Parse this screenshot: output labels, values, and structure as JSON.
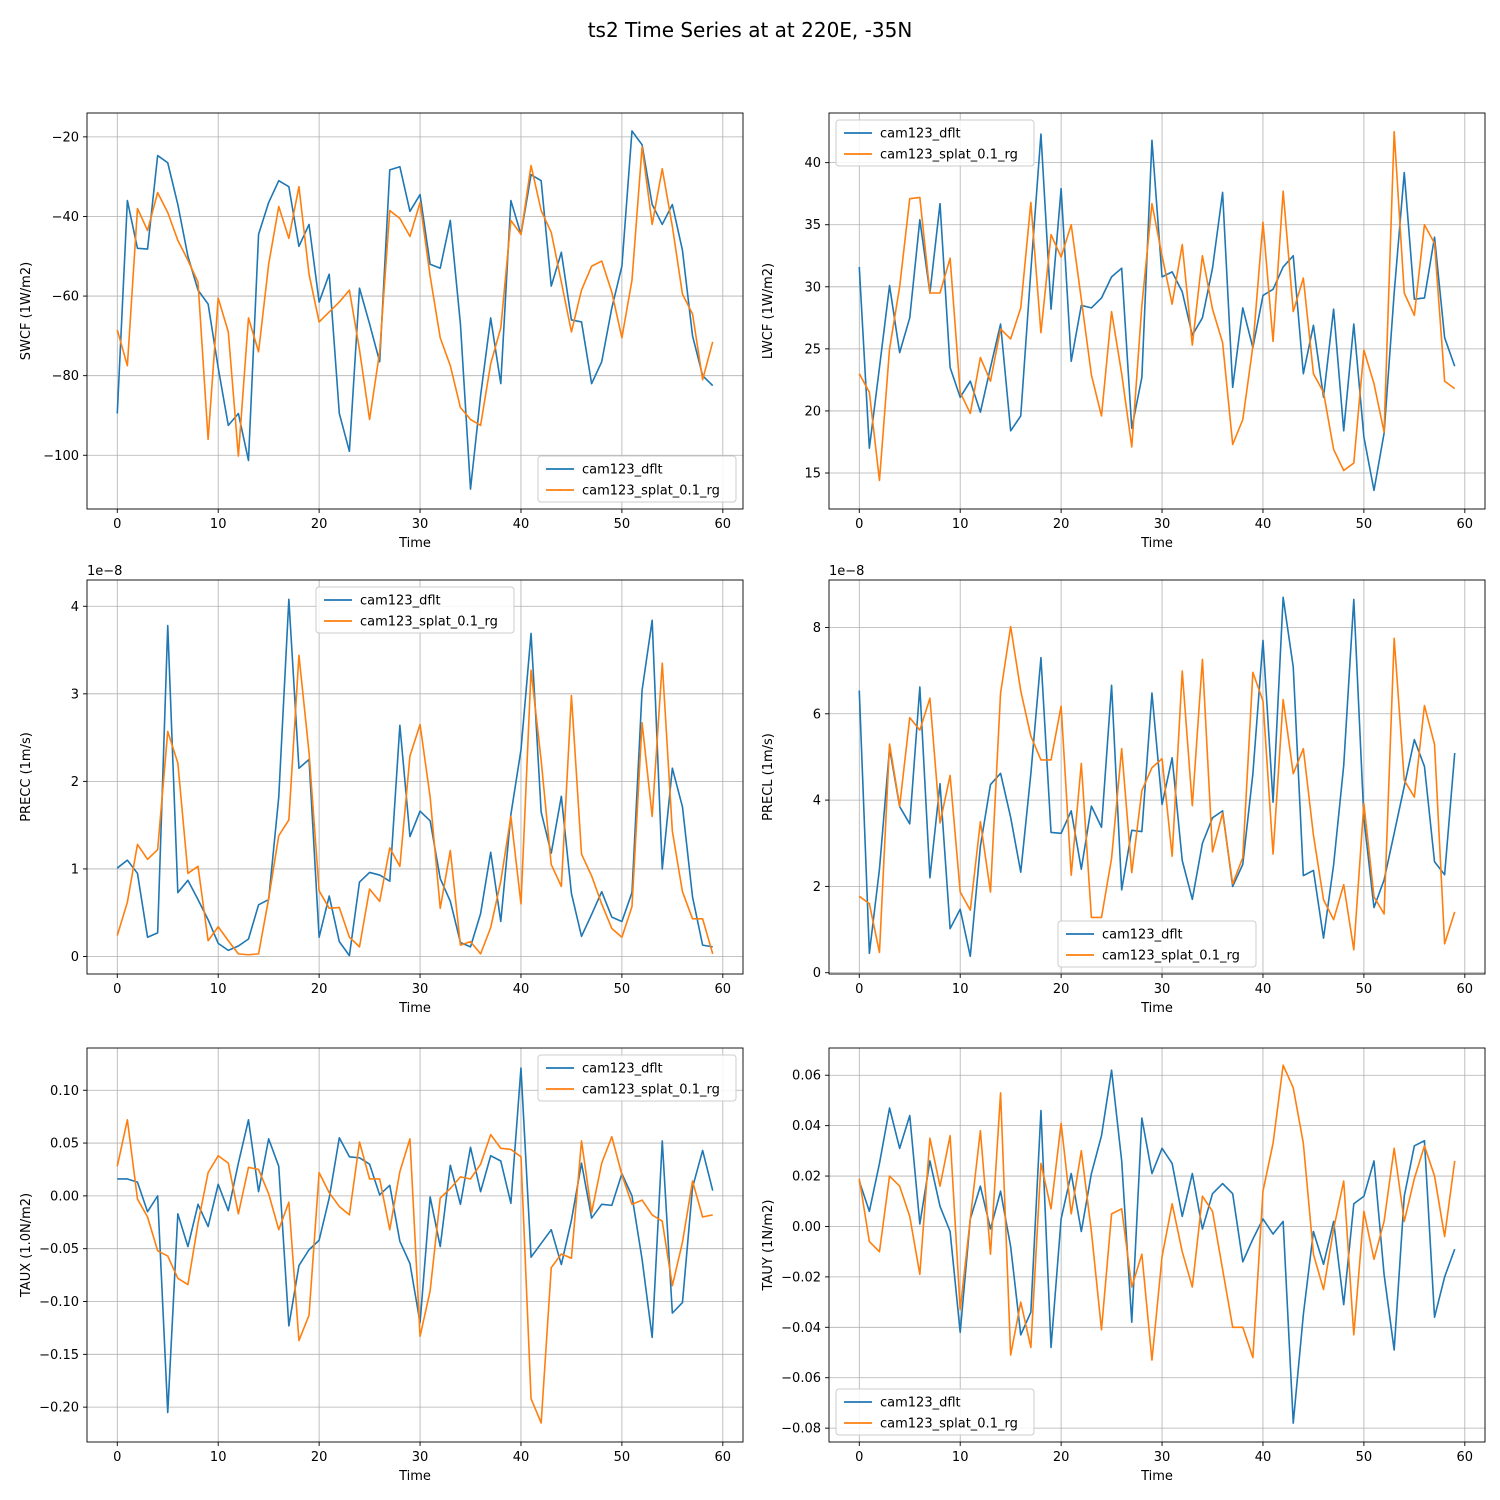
{
  "figure": {
    "title": "ts2 Time Series at at 220E, -35N"
  },
  "colors": {
    "cam123_dflt": "#1f77b4",
    "cam123_splat_0.1_rg": "#ff7f0e",
    "grid": "#b0b0b0"
  },
  "chart_data": [
    {
      "type": "line",
      "grid": true,
      "legend_position": "lower-right",
      "xlabel": "Time",
      "ylabel": "SWCF (1W/m2)",
      "scale_label": "",
      "xlim": [
        -3,
        62
      ],
      "ylim": [
        -113.5,
        -14
      ],
      "xticks": [
        0,
        10,
        20,
        30,
        40,
        50,
        60
      ],
      "xtick_labels": [
        "0",
        "10",
        "20",
        "30",
        "40",
        "50",
        "60"
      ],
      "yticks": [
        -100,
        -80,
        -60,
        -40,
        -20
      ],
      "ytick_labels": [
        "−100",
        "−80",
        "−60",
        "−40",
        "−20"
      ],
      "series": [
        {
          "name": "cam123_dflt",
          "x_start": 0,
          "values": [
            -89.5,
            -36,
            -48,
            -48.2,
            -24.7,
            -26.5,
            -37,
            -50,
            -58.5,
            -62,
            -78,
            -92.5,
            -89.5,
            -101.3,
            -44.5,
            -36.5,
            -31,
            -32.5,
            -47.5,
            -42,
            -61.5,
            -54.5,
            -89.5,
            -99,
            -58,
            -67,
            -76.5,
            -28.3,
            -27.5,
            -38.7,
            -34.5,
            -52,
            -53,
            -41,
            -67,
            -108.5,
            -85,
            -65.5,
            -82,
            -36,
            -44.5,
            -29.5,
            -31,
            -57.5,
            -49,
            -66,
            -66.5,
            -82,
            -76.5,
            -63,
            -52.5,
            -18.5,
            -22,
            -37,
            -42,
            -37,
            -48.5,
            -70,
            -80,
            -82.5
          ]
        },
        {
          "name": "cam123_splat_0.1_rg",
          "x_start": 0,
          "values": [
            -68.5,
            -77.5,
            -38,
            -43.5,
            -34,
            -39,
            -46,
            -51,
            -56.5,
            -96,
            -60.5,
            -69,
            -100.2,
            -65.5,
            -74,
            -52,
            -37.5,
            -45.5,
            -32.5,
            -54.5,
            -66.5,
            -64,
            -61.5,
            -58.5,
            -73.5,
            -91,
            -74,
            -38.5,
            -40.5,
            -45,
            -36.5,
            -55,
            -70.5,
            -77.5,
            -88,
            -91,
            -92.5,
            -77,
            -68,
            -41,
            -44.5,
            -27.2,
            -38.5,
            -44,
            -56.5,
            -69,
            -58.5,
            -52.5,
            -51.2,
            -59,
            -70.5,
            -56,
            -22.5,
            -42,
            -28,
            -42.5,
            -59.5,
            -64.5,
            -81,
            -71.5
          ]
        }
      ]
    },
    {
      "type": "line",
      "grid": true,
      "legend_position": "upper-left",
      "xlabel": "Time",
      "ylabel": "LWCF (1W/m2)",
      "scale_label": "",
      "xlim": [
        -3,
        62
      ],
      "ylim": [
        12.1,
        44.0
      ],
      "xticks": [
        0,
        10,
        20,
        30,
        40,
        50,
        60
      ],
      "xtick_labels": [
        "0",
        "10",
        "20",
        "30",
        "40",
        "50",
        "60"
      ],
      "yticks": [
        15,
        20,
        25,
        30,
        35,
        40
      ],
      "ytick_labels": [
        "15",
        "20",
        "25",
        "30",
        "35",
        "40"
      ],
      "series": [
        {
          "name": "cam123_dflt",
          "x_start": 0,
          "values": [
            31.6,
            17,
            23.5,
            30.1,
            24.7,
            27.5,
            35.4,
            29.5,
            36.7,
            23.5,
            21.1,
            22.4,
            19.9,
            23.5,
            27,
            18.4,
            19.6,
            31.3,
            42.3,
            28.2,
            37.9,
            24,
            28.5,
            28.3,
            29.1,
            30.8,
            31.5,
            18.6,
            22.7,
            41.8,
            30.8,
            31.2,
            29.6,
            26.1,
            27.5,
            31.5,
            37.6,
            21.9,
            28.3,
            25.1,
            29.3,
            29.8,
            31.6,
            32.5,
            23,
            26.9,
            21.1,
            28.2,
            18.4,
            27,
            17.9,
            13.6,
            18.2,
            29.5,
            39.2,
            29,
            29.1,
            34,
            25.9,
            23.6
          ]
        },
        {
          "name": "cam123_splat_0.1_rg",
          "x_start": 0,
          "values": [
            23,
            21.5,
            14.4,
            25,
            30,
            37.1,
            37.2,
            29.5,
            29.5,
            32.3,
            21.5,
            19.8,
            24.3,
            22.4,
            26.6,
            25.8,
            28.3,
            36.8,
            26.3,
            34.2,
            32.4,
            35,
            29,
            22.9,
            19.6,
            28,
            23,
            17.1,
            28.5,
            36.7,
            32.5,
            28.6,
            33.4,
            25.3,
            32.5,
            28.2,
            25.5,
            17.3,
            19.3,
            25.2,
            35.2,
            25.6,
            37.7,
            28,
            30.7,
            23,
            21.5,
            16.9,
            15.2,
            15.8,
            24.9,
            22.2,
            18.3,
            42.5,
            29.5,
            27.7,
            35,
            33.5,
            22.4,
            21.8
          ]
        }
      ]
    },
    {
      "type": "line",
      "grid": true,
      "legend_position": "upper-center",
      "xlabel": "Time",
      "ylabel": "PRECC (1m/s)",
      "scale_label": "1e−8",
      "xlim": [
        -3,
        62
      ],
      "ylim": [
        -0.2,
        4.3
      ],
      "xticks": [
        0,
        10,
        20,
        30,
        40,
        50,
        60
      ],
      "xtick_labels": [
        "0",
        "10",
        "20",
        "30",
        "40",
        "50",
        "60"
      ],
      "yticks": [
        0,
        1,
        2,
        3,
        4
      ],
      "ytick_labels": [
        "0",
        "1",
        "2",
        "3",
        "4"
      ],
      "series": [
        {
          "name": "cam123_dflt",
          "x_start": 0,
          "values": [
            1.01,
            1.1,
            0.95,
            0.22,
            0.27,
            3.78,
            0.73,
            0.87,
            0.65,
            0.42,
            0.15,
            0.07,
            0.12,
            0.2,
            0.59,
            0.65,
            1.82,
            4.08,
            2.15,
            2.25,
            0.22,
            0.69,
            0.17,
            0.01,
            0.85,
            0.96,
            0.93,
            0.86,
            2.64,
            1.37,
            1.66,
            1.55,
            0.89,
            0.63,
            0.16,
            0.11,
            0.49,
            1.19,
            0.4,
            1.62,
            2.36,
            3.69,
            1.65,
            1.18,
            1.83,
            0.72,
            0.23,
            0.48,
            0.74,
            0.45,
            0.4,
            0.73,
            3.04,
            3.84,
            1,
            2.15,
            1.71,
            0.68,
            0.13,
            0.11
          ]
        },
        {
          "name": "cam123_splat_0.1_rg",
          "x_start": 0,
          "values": [
            0.24,
            0.62,
            1.28,
            1.11,
            1.22,
            2.57,
            2.21,
            0.95,
            1.03,
            0.18,
            0.34,
            0.18,
            0.03,
            0.02,
            0.03,
            0.66,
            1.38,
            1.56,
            3.44,
            2.33,
            0.75,
            0.55,
            0.56,
            0.22,
            0.11,
            0.77,
            0.63,
            1.24,
            1.03,
            2.29,
            2.65,
            1.82,
            0.55,
            1.21,
            0.13,
            0.17,
            0.03,
            0.33,
            0.86,
            1.6,
            0.6,
            3.27,
            2.24,
            1.05,
            0.8,
            2.98,
            1.17,
            0.92,
            0.6,
            0.32,
            0.22,
            0.57,
            2.67,
            1.6,
            3.35,
            1.43,
            0.74,
            0.43,
            0.43,
            0.03
          ]
        }
      ]
    },
    {
      "type": "line",
      "grid": true,
      "legend_position": "lower-center",
      "xlabel": "Time",
      "ylabel": "PRECL (1m/s)",
      "scale_label": "1e−8",
      "xlim": [
        -3,
        62
      ],
      "ylim": [
        -0.03,
        9.1
      ],
      "xticks": [
        0,
        10,
        20,
        30,
        40,
        50,
        60
      ],
      "xtick_labels": [
        "0",
        "10",
        "20",
        "30",
        "40",
        "50",
        "60"
      ],
      "yticks": [
        0,
        2,
        4,
        6,
        8
      ],
      "ytick_labels": [
        "0",
        "2",
        "4",
        "6",
        "8"
      ],
      "series": [
        {
          "name": "cam123_dflt",
          "x_start": 0,
          "values": [
            6.54,
            0.45,
            2.4,
            5.2,
            3.85,
            3.45,
            6.62,
            2.2,
            4.38,
            1.02,
            1.47,
            0.38,
            2.93,
            4.36,
            4.62,
            3.6,
            2.33,
            4.61,
            7.3,
            3.25,
            3.23,
            3.75,
            2.4,
            3.86,
            3.37,
            6.66,
            1.92,
            3.3,
            3.27,
            6.48,
            3.9,
            4.98,
            2.6,
            1.7,
            3,
            3.59,
            3.75,
            2,
            2.51,
            4.61,
            7.7,
            3.95,
            8.7,
            7.08,
            2.25,
            2.37,
            0.8,
            2.5,
            4.8,
            8.65,
            3.57,
            1.51,
            2.15,
            3.23,
            4.32,
            5.4,
            4.78,
            2.57,
            2.27,
            5.09
          ]
        },
        {
          "name": "cam123_splat_0.1_rg",
          "x_start": 0,
          "values": [
            1.77,
            1.6,
            0.47,
            5.3,
            3.86,
            5.91,
            5.62,
            6.36,
            3.47,
            4.57,
            1.87,
            1.45,
            3.5,
            1.87,
            6.48,
            8.02,
            6.53,
            5.48,
            4.93,
            4.93,
            6.18,
            2.26,
            4.85,
            1.28,
            1.28,
            2.65,
            5.19,
            2.32,
            4.22,
            4.75,
            4.96,
            2.7,
            6.99,
            3.87,
            7.26,
            2.8,
            3.7,
            2.06,
            2.67,
            6.96,
            6.3,
            2.75,
            6.33,
            4.61,
            5.19,
            3.19,
            1.69,
            1.23,
            2.04,
            0.53,
            3.92,
            1.76,
            1.36,
            7.75,
            4.46,
            4.07,
            6.19,
            5.29,
            0.67,
            1.41
          ]
        }
      ]
    },
    {
      "type": "line",
      "grid": true,
      "legend_position": "upper-right",
      "xlabel": "Time",
      "ylabel": "TAUX (1.0N/m2)",
      "scale_label": "",
      "xlim": [
        -3,
        62
      ],
      "ylim": [
        -0.233,
        0.14
      ],
      "xticks": [
        0,
        10,
        20,
        30,
        40,
        50,
        60
      ],
      "xtick_labels": [
        "0",
        "10",
        "20",
        "30",
        "40",
        "50",
        "60"
      ],
      "yticks": [
        -0.2,
        -0.15,
        -0.1,
        -0.05,
        0.0,
        0.05,
        0.1
      ],
      "ytick_labels": [
        "−0.20",
        "−0.15",
        "−0.10",
        "−0.05",
        "0.00",
        "0.05",
        "0.10"
      ],
      "series": [
        {
          "name": "cam123_dflt",
          "x_start": 0,
          "values": [
            0.016,
            0.016,
            0.013,
            -0.015,
            0,
            -0.205,
            -0.017,
            -0.048,
            -0.008,
            -0.029,
            0.011,
            -0.014,
            0.031,
            0.072,
            0.004,
            0.054,
            0.028,
            -0.123,
            -0.066,
            -0.051,
            -0.042,
            -0.002,
            0.055,
            0.037,
            0.036,
            0.03,
            0.001,
            0.01,
            -0.043,
            -0.064,
            -0.12,
            -0.001,
            -0.048,
            0.029,
            -0.008,
            0.046,
            0.004,
            0.038,
            0.033,
            -0.007,
            0.121,
            -0.058,
            -0.045,
            -0.032,
            -0.065,
            -0.023,
            0.031,
            -0.021,
            -0.008,
            -0.009,
            0.021,
            0,
            -0.06,
            -0.134,
            0.052,
            -0.111,
            -0.101,
            0.008,
            0.043,
            0.005
          ]
        },
        {
          "name": "cam123_splat_0.1_rg",
          "x_start": 0,
          "values": [
            0.028,
            0.072,
            -0.003,
            -0.02,
            -0.052,
            -0.057,
            -0.078,
            -0.084,
            -0.026,
            0.022,
            0.038,
            0.031,
            -0.017,
            0.027,
            0.025,
            0.002,
            -0.032,
            -0.006,
            -0.137,
            -0.113,
            0.022,
            0.003,
            -0.01,
            -0.018,
            0.051,
            0.016,
            0.016,
            -0.032,
            0.023,
            0.054,
            -0.133,
            -0.09,
            -0.002,
            0.007,
            0.018,
            0.016,
            0.03,
            0.058,
            0.045,
            0.044,
            0.037,
            -0.192,
            -0.215,
            -0.068,
            -0.055,
            -0.059,
            0.052,
            -0.016,
            0.031,
            0.056,
            0.02,
            -0.008,
            -0.004,
            -0.018,
            -0.024,
            -0.085,
            -0.044,
            0.014,
            -0.02,
            -0.018
          ]
        }
      ]
    },
    {
      "type": "line",
      "grid": true,
      "legend_position": "lower-left",
      "xlabel": "Time",
      "ylabel": "TAUY (1N/m2)",
      "scale_label": "",
      "xlim": [
        -3,
        62
      ],
      "ylim": [
        -0.0855,
        0.0708
      ],
      "xticks": [
        0,
        10,
        20,
        30,
        40,
        50,
        60
      ],
      "xtick_labels": [
        "0",
        "10",
        "20",
        "30",
        "40",
        "50",
        "60"
      ],
      "yticks": [
        -0.08,
        -0.06,
        -0.04,
        -0.02,
        0.0,
        0.02,
        0.04,
        0.06
      ],
      "ytick_labels": [
        "−0.08",
        "−0.06",
        "−0.04",
        "−0.02",
        "0.00",
        "0.02",
        "0.04",
        "0.06"
      ],
      "series": [
        {
          "name": "cam123_dflt",
          "x_start": 0,
          "values": [
            0.018,
            0.006,
            0.025,
            0.047,
            0.031,
            0.044,
            0.001,
            0.026,
            0.008,
            -0.002,
            -0.042,
            0.003,
            0.016,
            -0.001,
            0.014,
            -0.008,
            -0.043,
            -0.034,
            0.046,
            -0.048,
            0.003,
            0.021,
            -0.002,
            0.021,
            0.036,
            0.062,
            0.026,
            -0.038,
            0.043,
            0.021,
            0.031,
            0.025,
            0.004,
            0.021,
            -0.001,
            0.013,
            0.017,
            0.013,
            -0.014,
            -0.005,
            0.003,
            -0.003,
            0.002,
            -0.078,
            -0.035,
            -0.002,
            -0.015,
            0.002,
            -0.031,
            0.009,
            0.012,
            0.026,
            -0.019,
            -0.049,
            0.012,
            0.032,
            0.034,
            -0.036,
            -0.02,
            -0.009
          ]
        },
        {
          "name": "cam123_splat_0.1_rg",
          "x_start": 0,
          "values": [
            0.019,
            -0.006,
            -0.01,
            0.02,
            0.016,
            0.004,
            -0.019,
            0.035,
            0.016,
            0.036,
            -0.033,
            0.003,
            0.038,
            -0.011,
            0.053,
            -0.051,
            -0.03,
            -0.048,
            0.025,
            0.007,
            0.041,
            0.005,
            0.03,
            -0.002,
            -0.041,
            0.005,
            0.007,
            -0.024,
            -0.011,
            -0.053,
            -0.012,
            0.009,
            -0.01,
            -0.024,
            0.012,
            0.006,
            -0.017,
            -0.04,
            -0.04,
            -0.052,
            0.014,
            0.033,
            0.064,
            0.055,
            0.033,
            -0.011,
            -0.025,
            -0.001,
            0.018,
            -0.043,
            0.006,
            -0.013,
            0.002,
            0.031,
            0.002,
            0.019,
            0.032,
            0.02,
            -0.004,
            0.026
          ]
        }
      ]
    }
  ]
}
